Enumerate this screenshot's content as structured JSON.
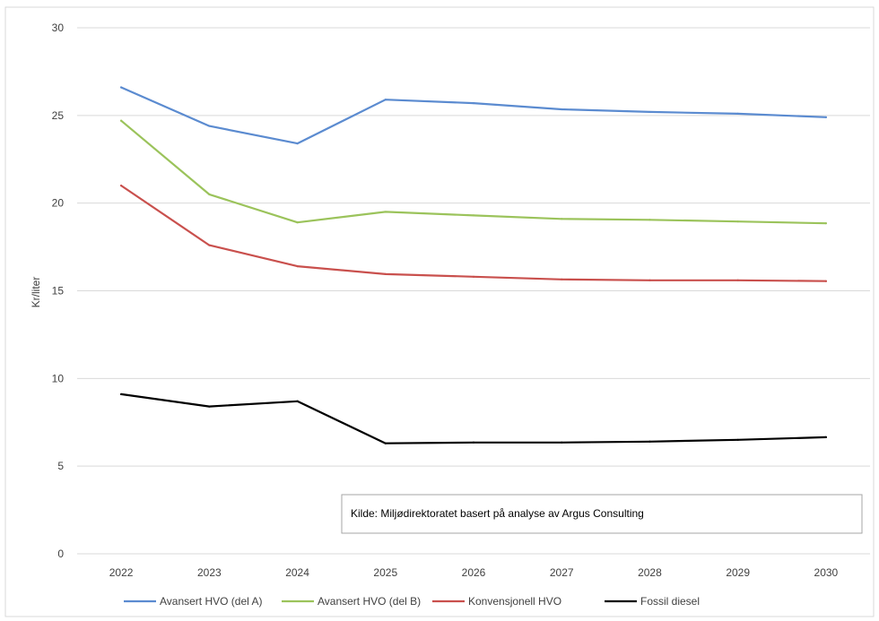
{
  "chart_data": {
    "type": "line",
    "title": "",
    "xlabel": "",
    "ylabel": "Kr/liter",
    "ylim": [
      0,
      30
    ],
    "yticks": [
      0,
      5,
      10,
      15,
      20,
      25,
      30
    ],
    "grid": true,
    "legend_position": "bottom",
    "categories": [
      "2022",
      "2023",
      "2024",
      "2025",
      "2026",
      "2027",
      "2028",
      "2029",
      "2030"
    ],
    "series": [
      {
        "name": "Avansert HVO (del A)",
        "color": "#5B8BD0",
        "values": [
          26.6,
          24.4,
          23.4,
          25.9,
          25.7,
          25.35,
          25.2,
          25.1,
          24.9
        ]
      },
      {
        "name": "Avansert HVO (del B)",
        "color": "#9BC35B",
        "values": [
          24.7,
          20.5,
          18.9,
          19.5,
          19.3,
          19.1,
          19.05,
          18.95,
          18.85
        ]
      },
      {
        "name": "Konvensjonell HVO",
        "color": "#C9504D",
        "values": [
          21.0,
          17.6,
          16.4,
          15.95,
          15.8,
          15.65,
          15.6,
          15.6,
          15.55
        ]
      },
      {
        "name": "Fossil diesel",
        "color": "#000000",
        "values": [
          9.1,
          8.4,
          8.7,
          6.3,
          6.35,
          6.35,
          6.4,
          6.5,
          6.65
        ]
      }
    ],
    "annotation": "Kilde: Miljødirektoratet basert på analyse av Argus Consulting"
  }
}
